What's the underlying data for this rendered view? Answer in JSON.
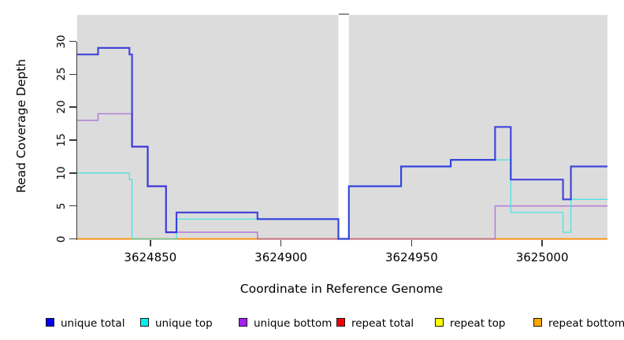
{
  "axes": {
    "x_label": "Coordinate in Reference Genome",
    "y_label": "Read Coverage Depth",
    "x_ticks": [
      {
        "value": 3624850,
        "label": "3624850"
      },
      {
        "value": 3624900,
        "label": "3624900"
      },
      {
        "value": 3624950,
        "label": "3624950"
      },
      {
        "value": 3625000,
        "label": "3625000"
      }
    ],
    "y_ticks": [
      {
        "value": 0,
        "label": "0"
      },
      {
        "value": 5,
        "label": "5"
      },
      {
        "value": 10,
        "label": "10"
      },
      {
        "value": 15,
        "label": "15"
      },
      {
        "value": 20,
        "label": "20"
      },
      {
        "value": 25,
        "label": "25"
      },
      {
        "value": 30,
        "label": "30"
      }
    ]
  },
  "legend": [
    {
      "label": "unique total",
      "color": "#0000EE"
    },
    {
      "label": "unique top",
      "color": "#00EEEE"
    },
    {
      "label": "unique bottom",
      "color": "#A020F0"
    },
    {
      "label": "repeat total",
      "color": "#EE0000"
    },
    {
      "label": "repeat top",
      "color": "#FFFF00"
    },
    {
      "label": "repeat bottom",
      "color": "#FFA500"
    }
  ],
  "colors": {
    "plot_background": "#DCDCDC",
    "gap_fill": "#FFFFFF",
    "gap_cap": "#8F8F8F",
    "axis": "#3A3A3A"
  },
  "chart_data": {
    "type": "line",
    "subtype": "step-coverage",
    "xlabel": "Coordinate in Reference Genome",
    "ylabel": "Read Coverage Depth",
    "xlim": [
      3624822,
      3625025
    ],
    "ylim": [
      0,
      30
    ],
    "grid": false,
    "legend_position": "bottom",
    "gap": {
      "x_start": 3624922,
      "x_end": 3624926
    },
    "series": [
      {
        "name": "repeat total",
        "color": "#E02020",
        "steps": [
          [
            3624822,
            0
          ]
        ],
        "end": 3625025
      },
      {
        "name": "repeat top",
        "color": "#F0F000",
        "steps": [
          [
            3624822,
            0
          ]
        ],
        "end": 3625025
      },
      {
        "name": "repeat bottom",
        "color": "#FF9912",
        "steps": [
          [
            3624822,
            0
          ]
        ],
        "end": 3625025
      },
      {
        "name": "unique bottom",
        "color": "#A35BD6",
        "steps": [
          [
            3624822,
            18
          ],
          [
            3624830,
            19
          ],
          [
            3624843,
            14
          ],
          [
            3624849,
            8
          ],
          [
            3624856,
            1
          ],
          [
            3624891,
            0
          ],
          [
            3624982,
            5
          ]
        ],
        "end": 3625025
      },
      {
        "name": "unique top",
        "color": "#35E3E3",
        "steps": [
          [
            3624822,
            10
          ],
          [
            3624842,
            9
          ],
          [
            3624843,
            0
          ],
          [
            3624860,
            3
          ],
          [
            3624922,
            0
          ],
          [
            3624926,
            8
          ],
          [
            3624946,
            11
          ],
          [
            3624965,
            12
          ],
          [
            3624988,
            4
          ],
          [
            3625008,
            1
          ],
          [
            3625011,
            6
          ]
        ],
        "end": 3625025
      },
      {
        "name": "unique total",
        "color": "#1E1EDC",
        "steps": [
          [
            3624822,
            28
          ],
          [
            3624830,
            29
          ],
          [
            3624842,
            28
          ],
          [
            3624843,
            14
          ],
          [
            3624849,
            8
          ],
          [
            3624856,
            1
          ],
          [
            3624860,
            4
          ],
          [
            3624891,
            3
          ],
          [
            3624922,
            0
          ],
          [
            3624926,
            8
          ],
          [
            3624946,
            11
          ],
          [
            3624965,
            12
          ],
          [
            3624982,
            17
          ],
          [
            3624988,
            9
          ],
          [
            3625008,
            6
          ],
          [
            3625011,
            11
          ]
        ],
        "end": 3625025
      }
    ]
  }
}
